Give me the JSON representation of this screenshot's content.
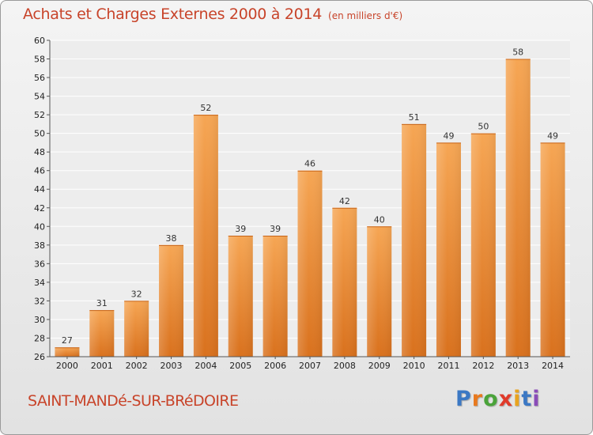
{
  "chart_data": {
    "type": "bar",
    "title": "Achats et Charges Externes 2000 à 2014",
    "subtitle": "(en milliers d'€)",
    "categories": [
      "2000",
      "2001",
      "2002",
      "2003",
      "2004",
      "2005",
      "2006",
      "2007",
      "2008",
      "2009",
      "2010",
      "2011",
      "2012",
      "2013",
      "2014"
    ],
    "values": [
      27,
      31,
      32,
      38,
      52,
      39,
      39,
      46,
      42,
      40,
      51,
      49,
      50,
      58,
      49
    ],
    "ylim": [
      26,
      60
    ],
    "yticks": [
      26,
      28,
      30,
      32,
      34,
      36,
      38,
      40,
      42,
      44,
      46,
      48,
      50,
      52,
      54,
      56,
      58,
      60
    ],
    "grid": true,
    "bar_color": "#e9852f"
  },
  "commune": "SAINT-MANDé-SUR-BRéDOIRE",
  "logo": {
    "text": "Proxiti",
    "letter_colors": [
      "#3b78c4",
      "#e8791e",
      "#4aa33a",
      "#e03a2a",
      "#e8a31e",
      "#3b78c4",
      "#8a4cb8"
    ]
  }
}
